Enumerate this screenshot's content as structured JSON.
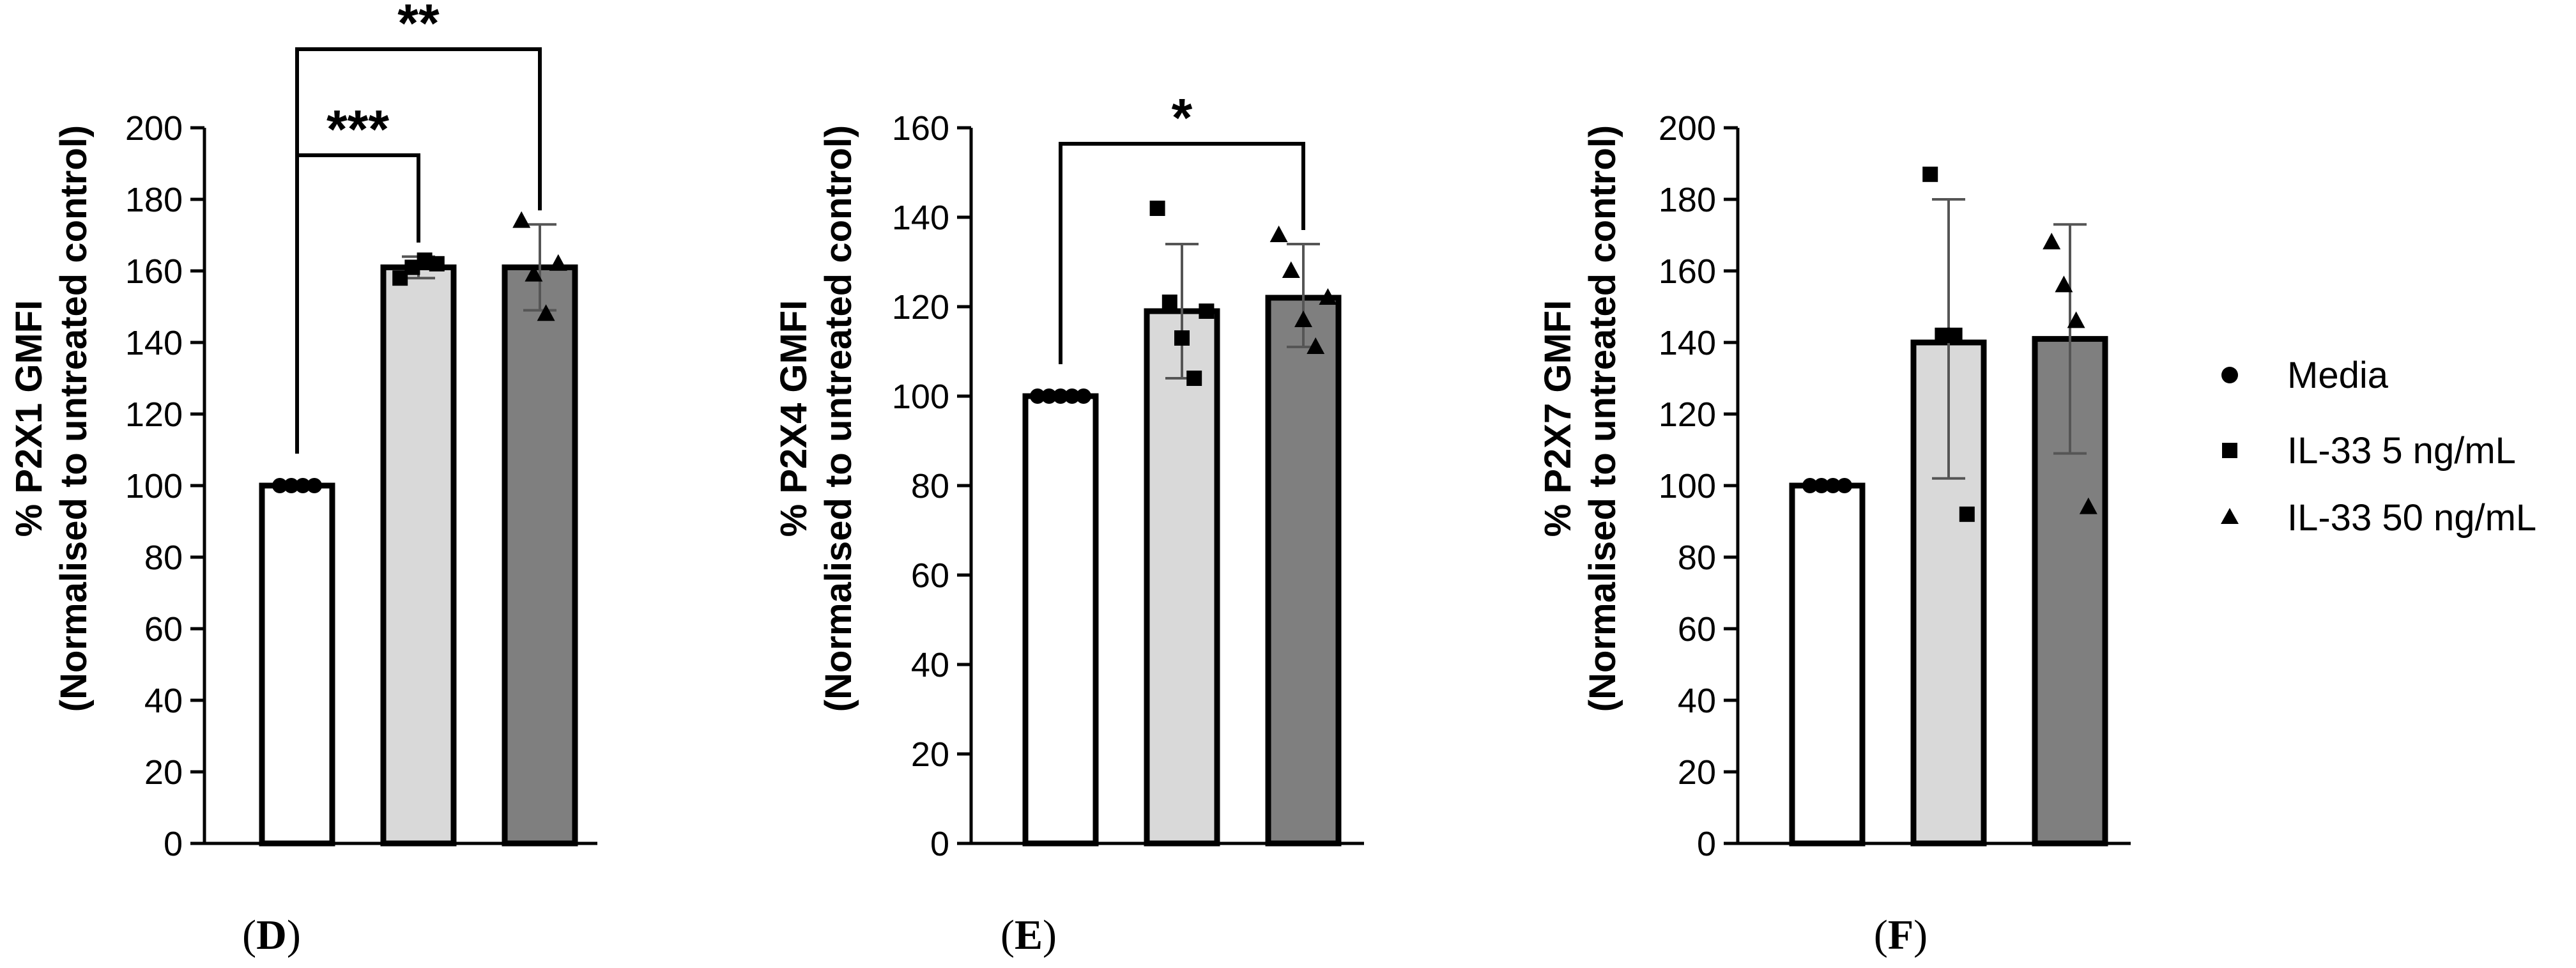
{
  "legend": {
    "entries": [
      {
        "label": "Media",
        "marker": "circle",
        "fill": "#ffffff"
      },
      {
        "label": "IL-33 5 ng/mL",
        "marker": "square",
        "fill": "#d9d9d9"
      },
      {
        "label": "IL-33 50 ng/mL",
        "marker": "triangle",
        "fill": "#7f7f7f"
      }
    ],
    "placement": "right"
  },
  "colors": {
    "media": "#ffffff",
    "il33_5": "#d9d9d9",
    "il33_50": "#7f7f7f",
    "axis": "#000000",
    "error_bar": "#555555"
  },
  "chart_data": [
    {
      "type": "bar",
      "panel": "D",
      "panel_label_letter": "D",
      "ylabel_line1": "% P2X1 GMFI",
      "ylabel_line2": "(Normalised to untreated control)",
      "ylim": [
        0,
        200
      ],
      "yticks": [
        0,
        20,
        40,
        60,
        80,
        100,
        120,
        140,
        160,
        180,
        200
      ],
      "grid": false,
      "categories": [
        "Media",
        "IL-33 5 ng/mL",
        "IL-33 50 ng/mL"
      ],
      "values": [
        100,
        161,
        161
      ],
      "error_low": [
        100,
        158,
        149
      ],
      "error_high": [
        100,
        164,
        173
      ],
      "points": [
        [
          100,
          100,
          100,
          100
        ],
        [
          158,
          161,
          163,
          162
        ],
        [
          174,
          159,
          148,
          162
        ]
      ],
      "significance": [
        {
          "from": 0,
          "to": 1,
          "label": "***",
          "level": 1
        },
        {
          "from": 0,
          "to": 2,
          "label": "**",
          "level": 2
        }
      ]
    },
    {
      "type": "bar",
      "panel": "E",
      "panel_label_letter": "E",
      "ylabel_line1": "% P2X4 GMFI",
      "ylabel_line2": "(Normalised to untreated control)",
      "ylim": [
        0,
        160
      ],
      "yticks": [
        0,
        20,
        40,
        60,
        80,
        100,
        120,
        140,
        160
      ],
      "grid": false,
      "categories": [
        "Media",
        "IL-33 5 ng/mL",
        "IL-33 50 ng/mL"
      ],
      "values": [
        100,
        119,
        122
      ],
      "error_low": [
        100,
        104,
        111
      ],
      "error_high": [
        100,
        134,
        134
      ],
      "points": [
        [
          100,
          100,
          100,
          100,
          100
        ],
        [
          142,
          121,
          113,
          104,
          119
        ],
        [
          136,
          128,
          117,
          111,
          122
        ]
      ],
      "significance": [
        {
          "from": 0,
          "to": 2,
          "label": "*",
          "level": 1
        }
      ]
    },
    {
      "type": "bar",
      "panel": "F",
      "panel_label_letter": "F",
      "ylabel_line1": "% P2X7 GMFI",
      "ylabel_line2": "(Normalised to untreated control)",
      "ylim": [
        0,
        200
      ],
      "yticks": [
        0,
        20,
        40,
        60,
        80,
        100,
        120,
        140,
        160,
        180,
        200
      ],
      "grid": false,
      "categories": [
        "Media",
        "IL-33 5 ng/mL",
        "IL-33 50 ng/mL"
      ],
      "values": [
        100,
        140,
        141
      ],
      "error_low": [
        100,
        102,
        109
      ],
      "error_high": [
        100,
        180,
        173
      ],
      "points": [
        [
          100,
          100,
          100,
          100
        ],
        [
          187,
          142,
          142,
          92
        ],
        [
          168,
          156,
          146,
          94
        ]
      ],
      "significance": []
    }
  ]
}
